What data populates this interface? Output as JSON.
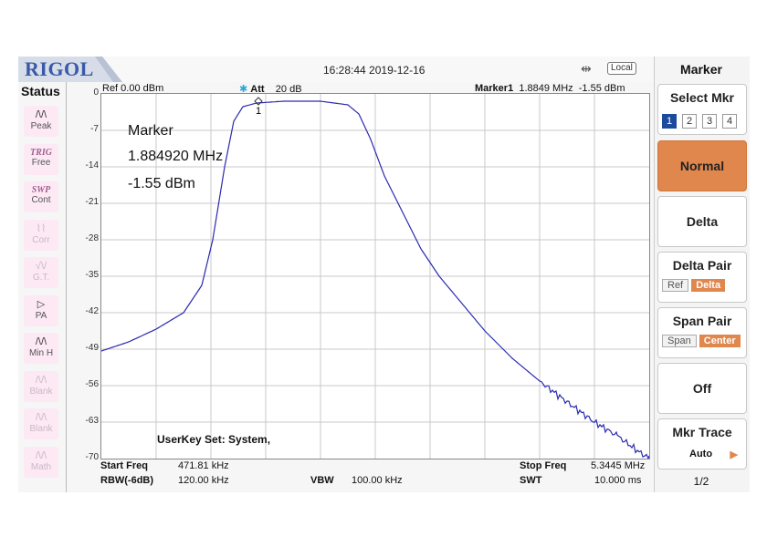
{
  "header": {
    "logo": "RIGOL",
    "datetime": "16:28:44 2019-12-16",
    "mode_badge": "Local",
    "usb_icon": "usb-icon"
  },
  "status": {
    "title": "Status",
    "items": [
      {
        "icon": "peak-icon",
        "label": "Peak",
        "dim": false
      },
      {
        "tag": "TRIG",
        "label": "Free",
        "dim": false
      },
      {
        "tag": "SWP",
        "label": "Cont",
        "dim": false
      },
      {
        "icon": "corr-icon",
        "label": "Corr",
        "dim": true
      },
      {
        "icon": "gt-icon",
        "label": "G.T.",
        "dim": true
      },
      {
        "icon": "pa-icon",
        "label": "PA",
        "dim": false
      },
      {
        "icon": "minh-icon",
        "label": "Min H",
        "dim": false
      },
      {
        "icon": "blank-icon",
        "label": "Blank",
        "dim": true
      },
      {
        "icon": "blank-icon",
        "label": "Blank",
        "dim": true
      },
      {
        "icon": "math-icon",
        "label": "Math",
        "dim": true
      }
    ]
  },
  "plot": {
    "ref": "Ref  0.00 dBm",
    "att_label": "Att",
    "att_value": "20 dB",
    "marker_name": "Marker1",
    "marker_freq": "1.8849 MHz",
    "marker_level": "-1.55 dBm",
    "y_ticks": [
      "0",
      "-7",
      "-14",
      "-21",
      "-28",
      "-35",
      "-42",
      "-49",
      "-56",
      "-63",
      "-70"
    ],
    "marker_info_title": "Marker",
    "marker_info_freq": "1.884920 MHz",
    "marker_info_level": "-1.55 dBm",
    "marker_number": "1",
    "userkey": "UserKey Set:    System,",
    "trace_color": "#2a2ab0"
  },
  "bottom": {
    "start_label": "Start Freq",
    "start_value": "471.81 kHz",
    "stop_label": "Stop Freq",
    "stop_value": "5.3445 MHz",
    "rbw_label": "RBW(-6dB)",
    "rbw_value": "120.00 kHz",
    "vbw_label": "VBW",
    "vbw_value": "100.00 kHz",
    "swt_label": "SWT",
    "swt_value": "10.000 ms"
  },
  "menu": {
    "title": "Marker",
    "select_mkr": "Select Mkr",
    "mkr_numbers": [
      "1",
      "2",
      "3",
      "4"
    ],
    "mkr_selected": "1",
    "normal": "Normal",
    "delta": "Delta",
    "delta_pair": "Delta Pair",
    "delta_pair_ref": "Ref",
    "delta_pair_delta": "Delta",
    "span_pair": "Span Pair",
    "span_pair_span": "Span",
    "span_pair_center": "Center",
    "off": "Off",
    "mkr_trace": "Mkr Trace",
    "mkr_trace_value": "Auto",
    "page": "1/2",
    "accent_color": "#e0874e"
  }
}
